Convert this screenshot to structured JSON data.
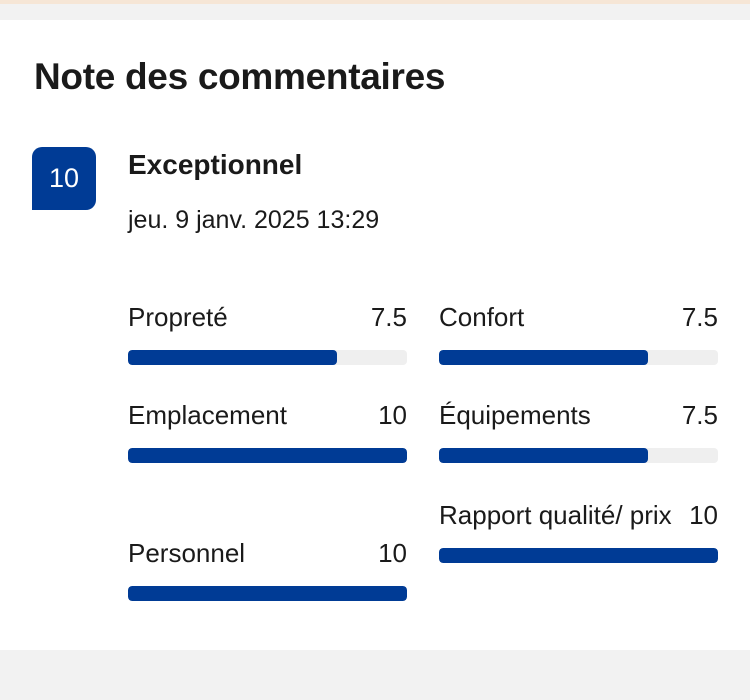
{
  "review": {
    "heading": "Note des commentaires",
    "score": "10",
    "verdict": "Exceptionnel",
    "date": "jeu. 9 janv. 2025 13:29"
  },
  "categories": [
    {
      "label": "Propreté",
      "value": "7.5",
      "fraction": 0.75
    },
    {
      "label": "Confort",
      "value": "7.5",
      "fraction": 0.75
    },
    {
      "label": "Emplacement",
      "value": "10",
      "fraction": 1.0
    },
    {
      "label": "Équipements",
      "value": "7.5",
      "fraction": 0.75
    },
    {
      "label": "Personnel",
      "value": "10",
      "fraction": 1.0
    },
    {
      "label": "Rapport qualité/ prix",
      "value": "10",
      "fraction": 1.0
    }
  ],
  "colors": {
    "accent": "#003b95",
    "track": "#efefef"
  }
}
